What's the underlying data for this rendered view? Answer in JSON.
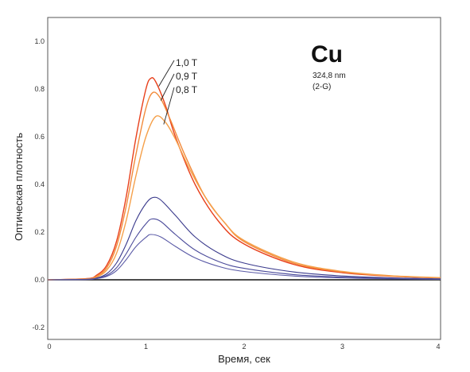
{
  "chart_data": {
    "type": "line",
    "xlabel": "Время, сек",
    "ylabel": "Оптическая плотность",
    "xlim": [
      0,
      4
    ],
    "ylim": [
      -0.25,
      1.1
    ],
    "x_ticks": [
      {
        "value": 0,
        "label": "0"
      },
      {
        "value": 1,
        "label": "1"
      },
      {
        "value": 2,
        "label": "2"
      },
      {
        "value": 3,
        "label": "3"
      },
      {
        "value": 4,
        "label": "4"
      }
    ],
    "y_ticks": [
      {
        "value": -0.2,
        "label": "-0.2"
      },
      {
        "value": 0.0,
        "label": "0.0"
      },
      {
        "value": 0.2,
        "label": "0.2"
      },
      {
        "value": 0.4,
        "label": "0.4"
      },
      {
        "value": 0.6,
        "label": "0.6"
      },
      {
        "value": 0.8,
        "label": "0.8"
      },
      {
        "value": 1.0,
        "label": "1.0"
      }
    ],
    "grid": false,
    "element": "Cu",
    "info_lines": [
      "324,8 nm",
      "(2-G)"
    ],
    "annotations": [
      {
        "text": "1,0 T",
        "target_series": 0
      },
      {
        "text": "0,9 T",
        "target_series": 1
      },
      {
        "text": "0,8 T",
        "target_series": 2
      }
    ],
    "series": [
      {
        "name": "1,0 T",
        "color": "#e8401c",
        "peak": 0.845,
        "peak_x": 1.05,
        "curve_points": [
          [
            0,
            0
          ],
          [
            0.4,
            0.005
          ],
          [
            0.5,
            0.02
          ],
          [
            0.6,
            0.06
          ],
          [
            0.7,
            0.16
          ],
          [
            0.8,
            0.35
          ],
          [
            0.9,
            0.6
          ],
          [
            1.0,
            0.8
          ],
          [
            1.05,
            0.845
          ],
          [
            1.1,
            0.83
          ],
          [
            1.2,
            0.73
          ],
          [
            1.3,
            0.6
          ],
          [
            1.5,
            0.4
          ],
          [
            1.75,
            0.24
          ],
          [
            2.0,
            0.15
          ],
          [
            2.5,
            0.065
          ],
          [
            3.0,
            0.03
          ],
          [
            3.5,
            0.015
          ],
          [
            4.0,
            0.008
          ]
        ]
      },
      {
        "name": "0,9 T",
        "color": "#f28a3a",
        "peak": 0.785,
        "peak_x": 1.07,
        "curve_points": [
          [
            0,
            0
          ],
          [
            0.4,
            0.004
          ],
          [
            0.5,
            0.016
          ],
          [
            0.6,
            0.05
          ],
          [
            0.7,
            0.14
          ],
          [
            0.8,
            0.31
          ],
          [
            0.9,
            0.53
          ],
          [
            1.0,
            0.72
          ],
          [
            1.07,
            0.785
          ],
          [
            1.15,
            0.76
          ],
          [
            1.25,
            0.67
          ],
          [
            1.4,
            0.52
          ],
          [
            1.6,
            0.35
          ],
          [
            1.8,
            0.24
          ],
          [
            2.0,
            0.16
          ],
          [
            2.5,
            0.07
          ],
          [
            3.0,
            0.033
          ],
          [
            3.5,
            0.016
          ],
          [
            4.0,
            0.008
          ]
        ]
      },
      {
        "name": "0,8 T",
        "color": "#f5a04a",
        "peak": 0.685,
        "peak_x": 1.1,
        "curve_points": [
          [
            0,
            0
          ],
          [
            0.4,
            0.003
          ],
          [
            0.5,
            0.012
          ],
          [
            0.6,
            0.04
          ],
          [
            0.7,
            0.11
          ],
          [
            0.8,
            0.25
          ],
          [
            0.9,
            0.44
          ],
          [
            1.0,
            0.6
          ],
          [
            1.1,
            0.685
          ],
          [
            1.2,
            0.66
          ],
          [
            1.3,
            0.59
          ],
          [
            1.45,
            0.46
          ],
          [
            1.6,
            0.35
          ],
          [
            1.8,
            0.24
          ],
          [
            2.0,
            0.165
          ],
          [
            2.5,
            0.075
          ],
          [
            3.0,
            0.035
          ],
          [
            3.5,
            0.017
          ],
          [
            4.0,
            0.009
          ]
        ]
      },
      {
        "name": "",
        "color": "#3a3a8c",
        "peak": 0.345,
        "peak_x": 1.07,
        "curve_points": [
          [
            0,
            0
          ],
          [
            0.4,
            0.002
          ],
          [
            0.5,
            0.008
          ],
          [
            0.6,
            0.025
          ],
          [
            0.7,
            0.07
          ],
          [
            0.8,
            0.15
          ],
          [
            0.9,
            0.25
          ],
          [
            1.0,
            0.32
          ],
          [
            1.07,
            0.345
          ],
          [
            1.15,
            0.335
          ],
          [
            1.3,
            0.27
          ],
          [
            1.5,
            0.18
          ],
          [
            1.75,
            0.11
          ],
          [
            2.0,
            0.07
          ],
          [
            2.5,
            0.033
          ],
          [
            3.0,
            0.016
          ],
          [
            3.5,
            0.008
          ],
          [
            4.0,
            0.004
          ]
        ]
      },
      {
        "name": "",
        "color": "#4a4a9a",
        "peak": 0.255,
        "peak_x": 1.06,
        "curve_points": [
          [
            0,
            0
          ],
          [
            0.4,
            0.002
          ],
          [
            0.5,
            0.006
          ],
          [
            0.6,
            0.018
          ],
          [
            0.7,
            0.05
          ],
          [
            0.8,
            0.11
          ],
          [
            0.9,
            0.18
          ],
          [
            1.0,
            0.235
          ],
          [
            1.06,
            0.255
          ],
          [
            1.15,
            0.245
          ],
          [
            1.3,
            0.19
          ],
          [
            1.5,
            0.125
          ],
          [
            1.75,
            0.075
          ],
          [
            2.0,
            0.048
          ],
          [
            2.5,
            0.022
          ],
          [
            3.0,
            0.011
          ],
          [
            3.5,
            0.006
          ],
          [
            4.0,
            0.003
          ]
        ]
      },
      {
        "name": "",
        "color": "#5a5aa6",
        "peak": 0.19,
        "peak_x": 1.05,
        "curve_points": [
          [
            0,
            0
          ],
          [
            0.4,
            0.001
          ],
          [
            0.5,
            0.005
          ],
          [
            0.6,
            0.014
          ],
          [
            0.7,
            0.038
          ],
          [
            0.8,
            0.085
          ],
          [
            0.9,
            0.14
          ],
          [
            1.0,
            0.178
          ],
          [
            1.05,
            0.19
          ],
          [
            1.15,
            0.18
          ],
          [
            1.3,
            0.14
          ],
          [
            1.5,
            0.092
          ],
          [
            1.75,
            0.055
          ],
          [
            2.0,
            0.035
          ],
          [
            2.5,
            0.016
          ],
          [
            3.0,
            0.008
          ],
          [
            3.5,
            0.004
          ],
          [
            4.0,
            0.002
          ]
        ]
      }
    ]
  }
}
